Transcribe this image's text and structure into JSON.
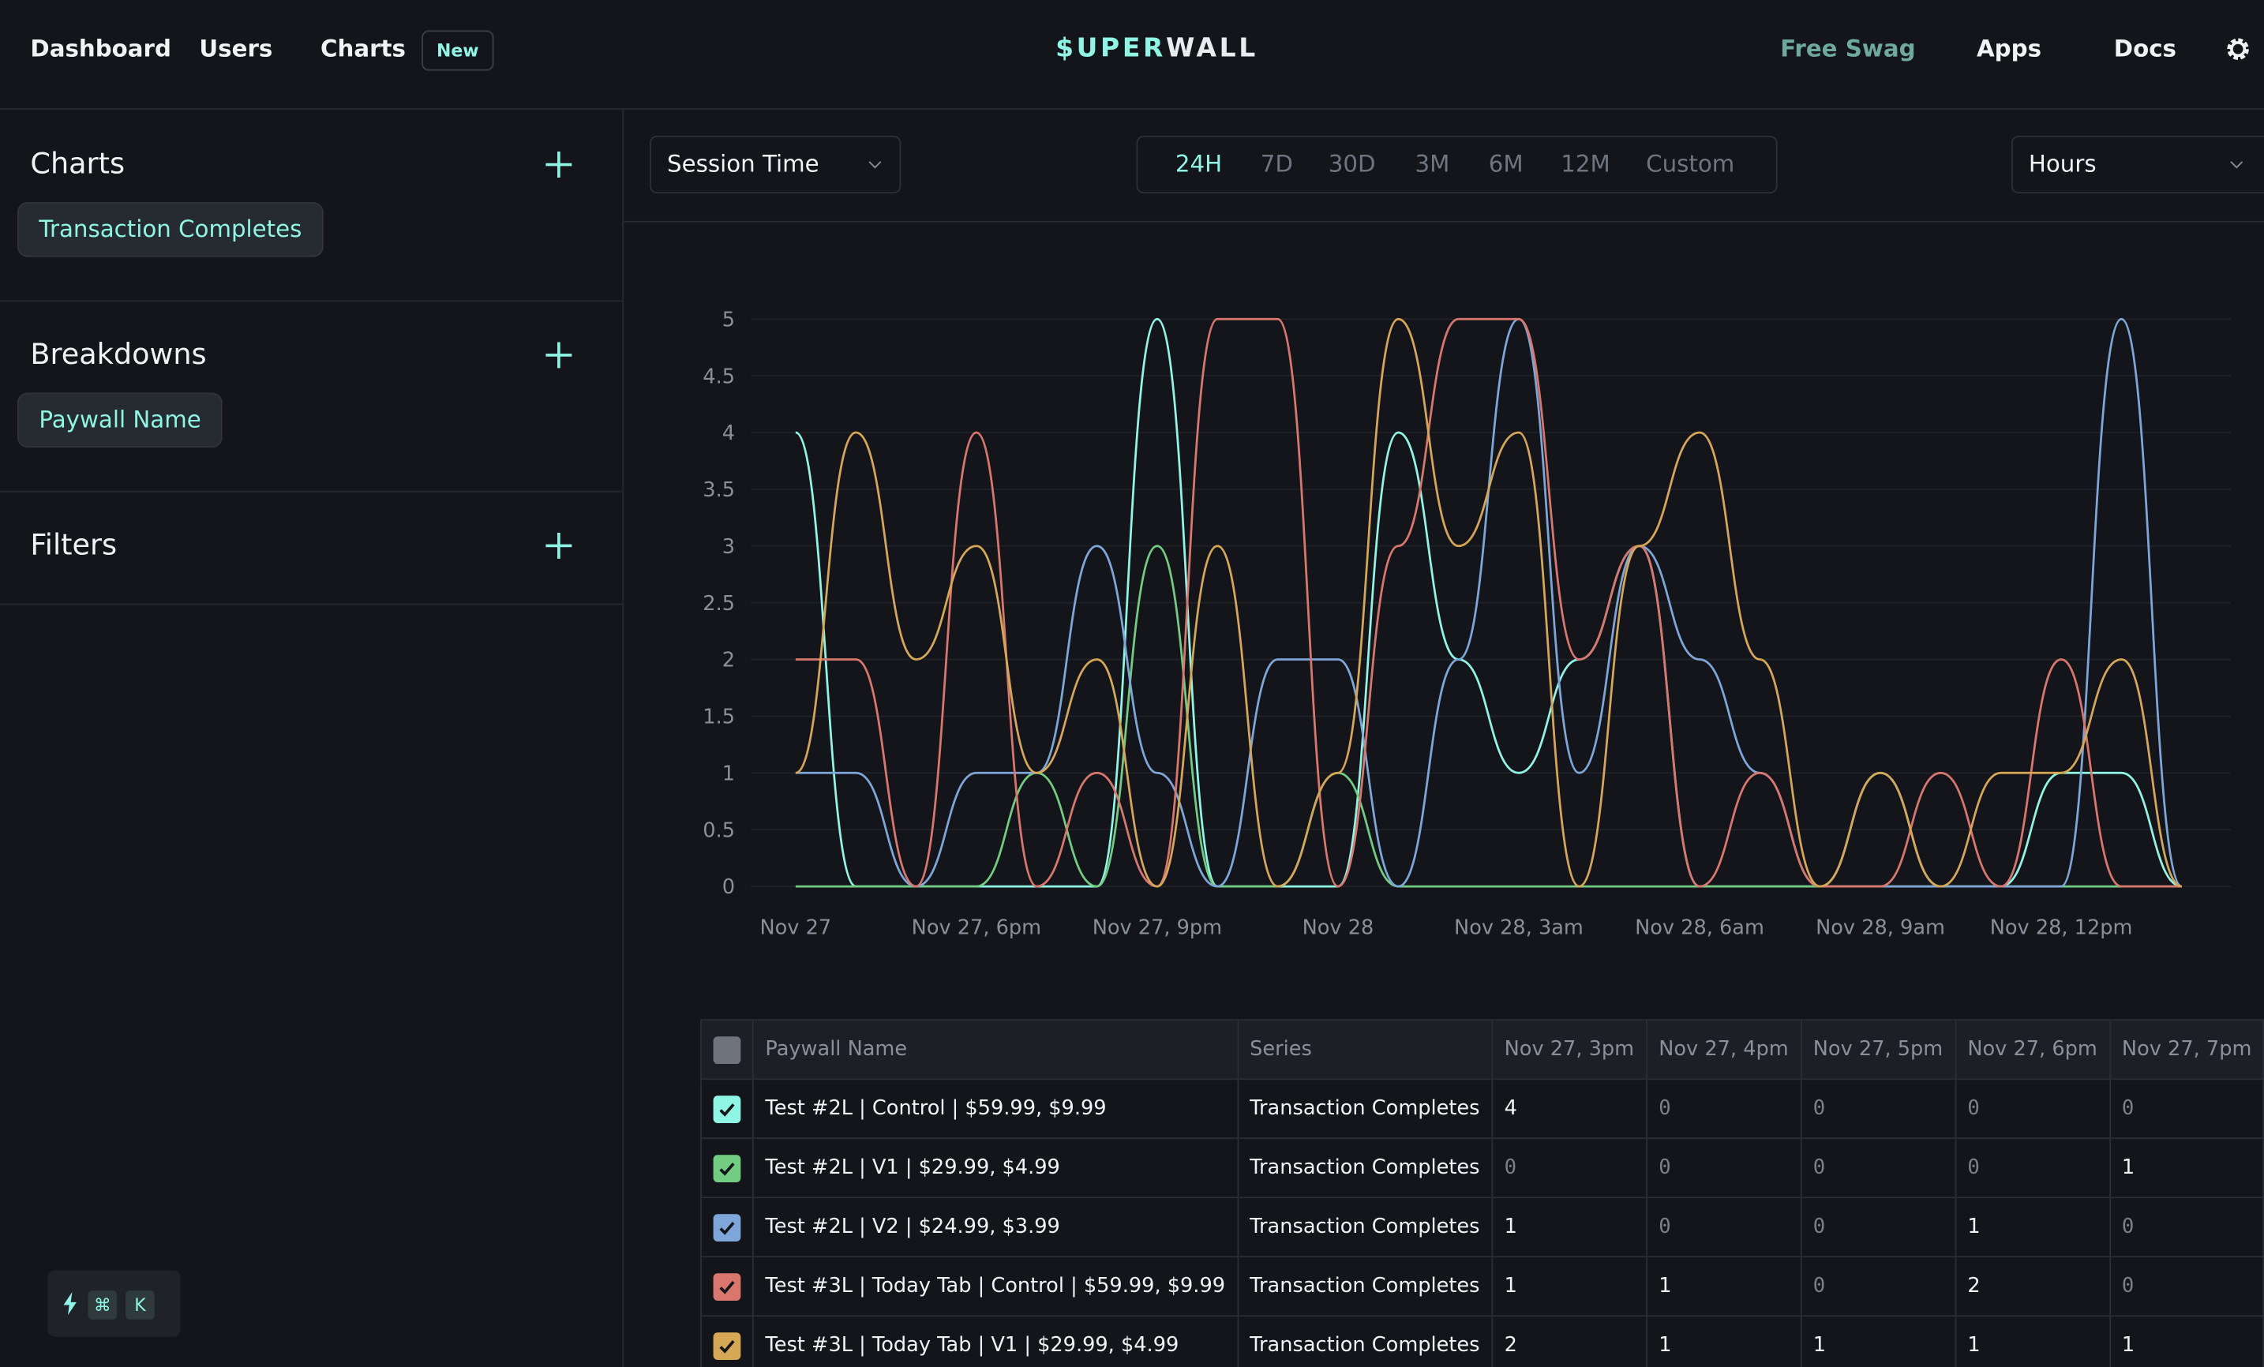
{
  "nav": {
    "links": [
      "Dashboard",
      "Users",
      "Charts"
    ],
    "badge": "New",
    "logo_prefix": "$UPER",
    "logo_suffix": "WALL",
    "right_links": [
      "Free Swag",
      "Apps",
      "Docs"
    ]
  },
  "sidebar": {
    "sections": [
      {
        "title": "Charts",
        "chip": "Transaction Completes"
      },
      {
        "title": "Breakdowns",
        "chip": "Paywall Name"
      },
      {
        "title": "Filters"
      }
    ]
  },
  "controls": {
    "metric": "Session Time",
    "ranges": [
      "24H",
      "7D",
      "30D",
      "3M",
      "6M",
      "12M",
      "Custom"
    ],
    "active_range": "24H",
    "granularity": "Hours"
  },
  "chart_data": {
    "type": "line",
    "categories": [
      "Nov 27",
      null,
      null,
      "Nov 27, 6pm",
      null,
      null,
      "Nov 27, 9pm",
      null,
      null,
      "Nov 28",
      null,
      null,
      "Nov 28, 3am",
      null,
      null,
      "Nov 28, 6am",
      null,
      null,
      "Nov 28, 9am",
      null,
      null,
      "Nov 28, 12pm",
      null,
      null
    ],
    "ylim": [
      0,
      5
    ],
    "yticks": [
      0,
      0.5,
      1,
      1.5,
      2,
      2.5,
      3,
      3.5,
      4,
      4.5,
      5
    ],
    "grid": true,
    "series": [
      {
        "name": "Test #2L | Control | $59.99, $9.99",
        "color": "#8ff5e4",
        "values": [
          4,
          0,
          0,
          0,
          0,
          0,
          5,
          0,
          0,
          0,
          4,
          2,
          1,
          2,
          3,
          0,
          0,
          0,
          1,
          0,
          0,
          1,
          1,
          0
        ]
      },
      {
        "name": "Test #2L | V1 | $29.99, $4.99",
        "color": "#72cc82",
        "values": [
          0,
          0,
          0,
          0,
          1,
          0,
          3,
          0,
          0,
          1,
          0,
          0,
          0,
          0,
          0,
          0,
          0,
          0,
          0,
          0,
          0,
          0,
          0,
          0
        ]
      },
      {
        "name": "Test #2L | V2 | $24.99, $3.99",
        "color": "#7ea6d8",
        "values": [
          1,
          1,
          0,
          1,
          1,
          3,
          1,
          0,
          2,
          2,
          0,
          2,
          5,
          1,
          3,
          2,
          1,
          0,
          0,
          0,
          0,
          0,
          5,
          0
        ]
      },
      {
        "name": "Test #3L | Today Tab | Control | $59.99, $9.99",
        "color": "#d9776f",
        "values": [
          2,
          2,
          0,
          4,
          0,
          1,
          0,
          5,
          5,
          0,
          3,
          5,
          5,
          2,
          3,
          0,
          1,
          0,
          0,
          1,
          0,
          2,
          0,
          0
        ]
      },
      {
        "name": "Test #3L | Today Tab | V1 | $29.99, $4.99",
        "color": "#d6a755",
        "values": [
          1,
          4,
          2,
          3,
          1,
          2,
          0,
          3,
          0,
          1,
          5,
          3,
          4,
          0,
          3,
          4,
          2,
          0,
          1,
          0,
          1,
          1,
          2,
          0
        ]
      }
    ]
  },
  "table": {
    "headers": [
      "Paywall Name",
      "Series",
      "Nov 27, 3pm",
      "Nov 27, 4pm",
      "Nov 27, 5pm",
      "Nov 27, 6pm",
      "Nov 27, 7pm"
    ],
    "rows": [
      [
        "Test #2L | Control | $59.99, $9.99",
        "Transaction Completes",
        4,
        0,
        0,
        0,
        0
      ],
      [
        "Test #2L | V1 | $29.99, $4.99",
        "Transaction Completes",
        0,
        0,
        0,
        0,
        1
      ],
      [
        "Test #2L | V2 | $24.99, $3.99",
        "Transaction Completes",
        1,
        0,
        0,
        1,
        0
      ],
      [
        "Test #3L | Today Tab | Control | $59.99, $9.99",
        "Transaction Completes",
        1,
        1,
        0,
        2,
        0
      ],
      [
        "Test #3L | Today Tab | V1 | $29.99, $4.99",
        "Transaction Completes",
        2,
        1,
        1,
        1,
        1
      ]
    ]
  },
  "shortcut": {
    "keys": [
      "⌘",
      "K"
    ]
  }
}
